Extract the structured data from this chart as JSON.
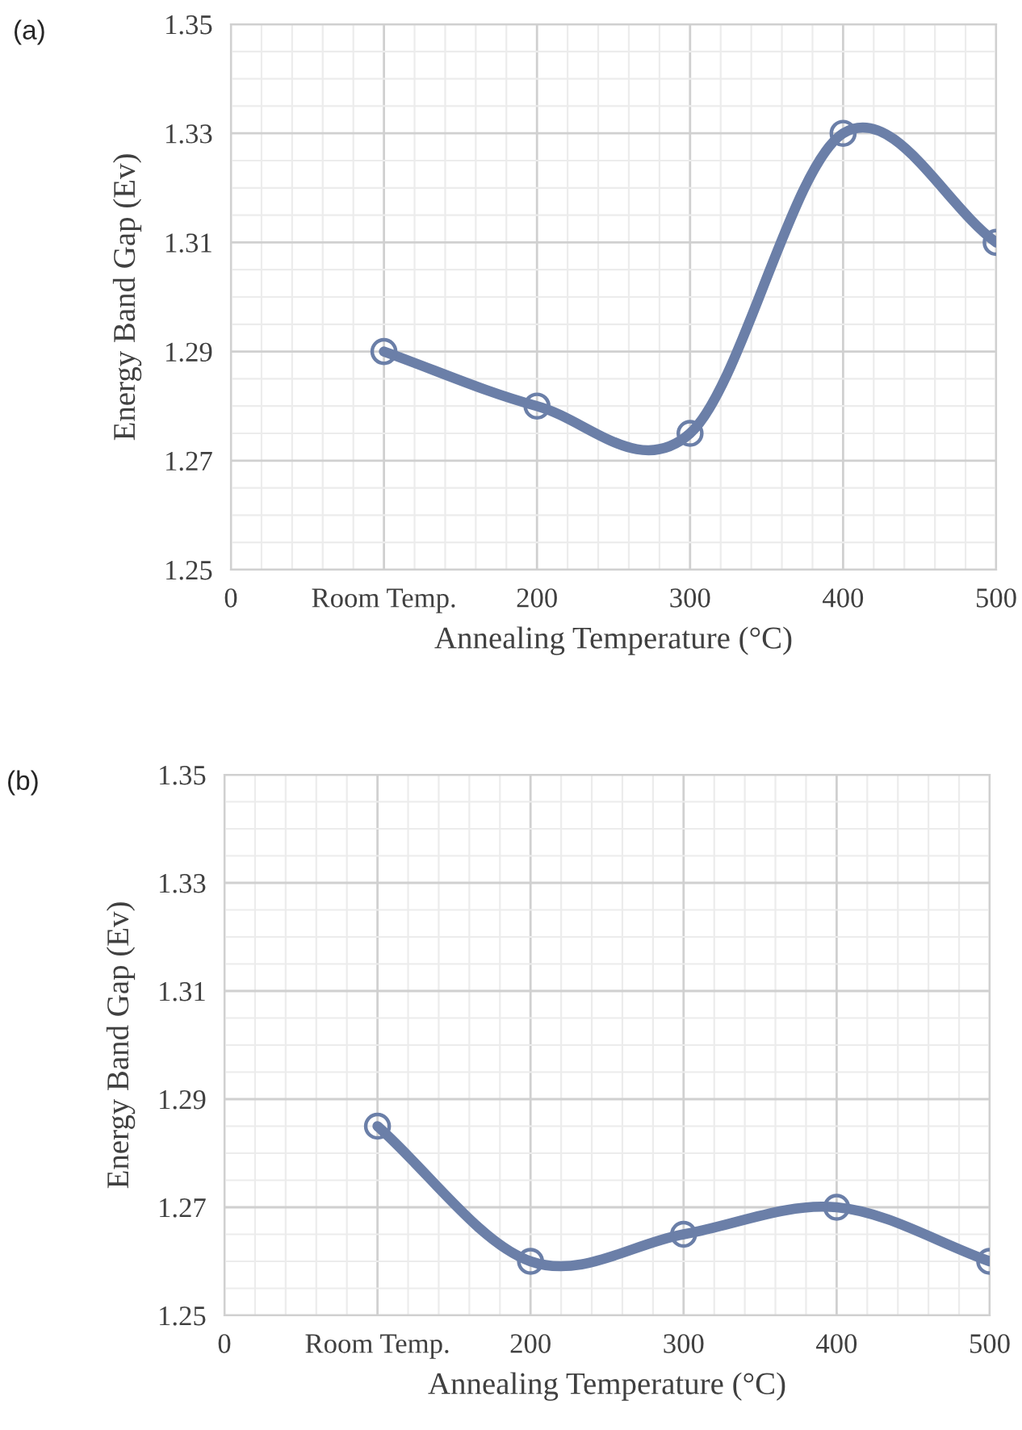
{
  "chart_data": [
    {
      "type": "line",
      "annotations": [
        "(a)"
      ],
      "xlabel": "Annealing Temperature (°C)",
      "ylabel": "Energy Band Gap (Ev)",
      "x": [
        100,
        200,
        300,
        400,
        500
      ],
      "series": [
        {
          "color": "#6b7fa8",
          "values": [
            1.29,
            1.28,
            1.275,
            1.33,
            1.31
          ]
        }
      ],
      "xlim": [
        0,
        500
      ],
      "xticks": [
        0,
        {
          "value": 100,
          "label": "Room Temp."
        },
        200,
        300,
        400,
        500
      ],
      "ylim": [
        1.25,
        1.35
      ],
      "yticks": [
        1.25,
        1.27,
        1.29,
        1.31,
        1.33,
        1.35
      ],
      "grid": true,
      "marker": "circle",
      "line_style": "solid"
    },
    {
      "type": "line",
      "annotations": [
        "(b)"
      ],
      "xlabel": "Annealing Temperature (°C)",
      "ylabel": "Energy Band Gap (Ev)",
      "x": [
        100,
        200,
        300,
        400,
        500
      ],
      "series": [
        {
          "color": "#6b7fa8",
          "values": [
            1.285,
            1.26,
            1.265,
            1.27,
            1.26
          ]
        }
      ],
      "xlim": [
        0,
        500
      ],
      "xticks": [
        0,
        {
          "value": 100,
          "label": "Room Temp."
        },
        200,
        300,
        400,
        500
      ],
      "ylim": [
        1.25,
        1.35
      ],
      "yticks": [
        1.25,
        1.27,
        1.29,
        1.31,
        1.33,
        1.35
      ],
      "grid": true,
      "marker": "circle",
      "line_style": "solid"
    }
  ]
}
